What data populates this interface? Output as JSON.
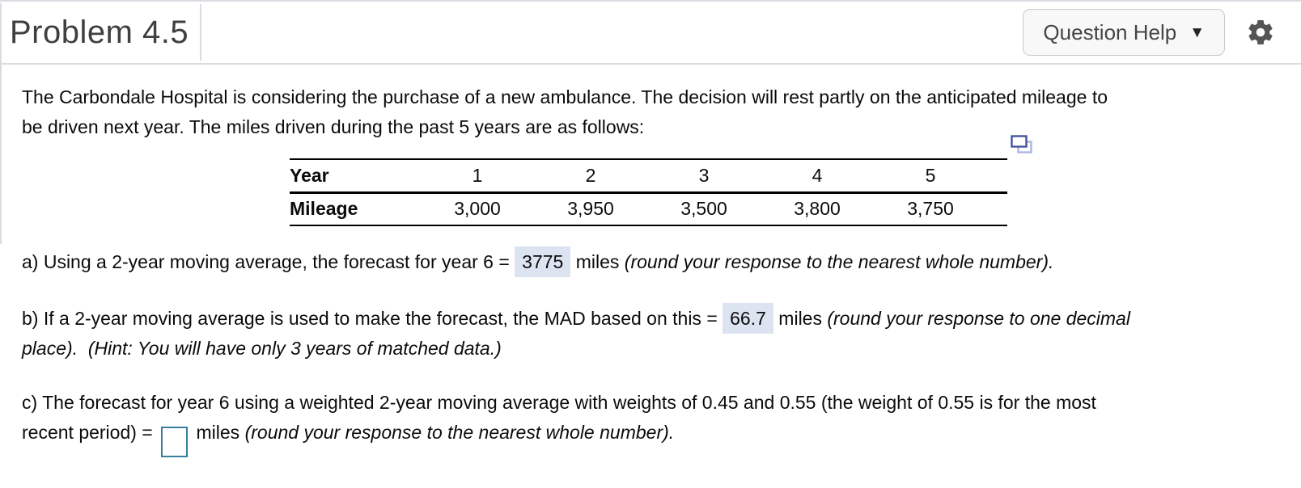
{
  "header": {
    "title": "Problem 4.5",
    "question_help_label": "Question Help",
    "caret": "▼"
  },
  "colors": {
    "highlight_bg": "#dce4f1",
    "input_border": "#37809c",
    "copy_icon_front": "#47549b",
    "copy_icon_back": "#aab6e4",
    "gear_icon": "#555555",
    "panel_border": "#d9dce1"
  },
  "table": {
    "rows": [
      {
        "label": "Year",
        "values": [
          "1",
          "2",
          "3",
          "4",
          "5"
        ]
      },
      {
        "label": "Mileage",
        "values": [
          "3,000",
          "3,950",
          "3,500",
          "3,800",
          "3,750"
        ]
      }
    ]
  },
  "answers": {
    "part_a_value": "3775",
    "part_b_value": "66.7",
    "part_c_value": ""
  },
  "paragraphs": {
    "intro": {
      "lines": [
        [
          {
            "k": "plain",
            "t": "The Carbondale Hospital is considering the purchase of a new ambulance. The decision will rest partly on the anticipated mileage to"
          }
        ],
        [
          {
            "k": "plain",
            "t": "be driven next year. The miles driven during the past 5 years are as follows:"
          }
        ]
      ]
    },
    "part_a": {
      "lines": [
        [
          {
            "k": "plain",
            "t": "a) Using a 2-year moving average, the forecast for year 6 = "
          },
          {
            "k": "answer",
            "t": "3775",
            "name": "part-a-answer-value"
          },
          {
            "k": "plain",
            "t": " miles "
          },
          {
            "k": "italic",
            "t": "(round your response to the nearest whole number)."
          }
        ]
      ]
    },
    "part_b": {
      "lines": [
        [
          {
            "k": "plain",
            "t": "b) If a 2-year moving average is used to make the forecast, the MAD based on this = "
          },
          {
            "k": "answer",
            "t": "66.7",
            "name": "part-b-answer-value"
          },
          {
            "k": "plain",
            "t": " miles "
          },
          {
            "k": "italic",
            "t": "(round your response to one decimal"
          }
        ],
        [
          {
            "k": "italic",
            "t": "place).  (Hint: You will have only 3 years of matched data.)"
          }
        ]
      ]
    },
    "part_c": {
      "lines": [
        [
          {
            "k": "plain",
            "t": "c) The forecast for year 6 using a weighted 2-year moving average with weights of 0.45 and 0.55 (the weight of 0.55 is for the most"
          }
        ],
        [
          {
            "k": "plain",
            "t": "recent period) = "
          },
          {
            "k": "input",
            "name": "part-c-answer-input"
          },
          {
            "k": "plain",
            "t": " miles "
          },
          {
            "k": "italic",
            "t": "(round your response to the nearest whole number)."
          }
        ]
      ]
    }
  }
}
